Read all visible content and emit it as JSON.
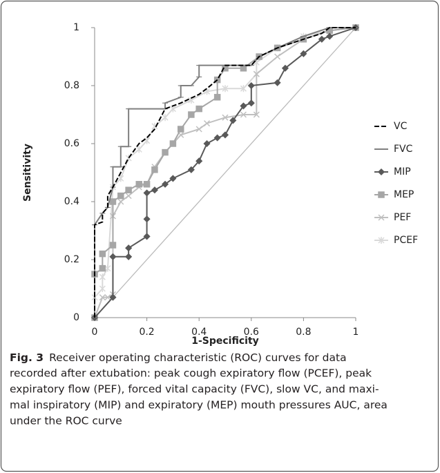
{
  "chart_data": {
    "type": "line",
    "xlabel": "1-Specificity",
    "ylabel": "Sensitivity",
    "xlim": [
      0,
      1
    ],
    "ylim": [
      0,
      1
    ],
    "xticks": [
      0,
      0.2,
      0.4,
      0.6,
      0.8,
      1
    ],
    "yticks": [
      0,
      0.2,
      0.4,
      0.6,
      0.8,
      1
    ],
    "series": [
      {
        "name": "VC",
        "color": "#000000",
        "dash": true,
        "marker": "none",
        "x": [
          0,
          0,
          0.03,
          0.03,
          0.05,
          0.05,
          0.07,
          0.1,
          0.13,
          0.17,
          0.2,
          0.23,
          0.27,
          0.33,
          0.4,
          0.43,
          0.47,
          0.5,
          0.55,
          0.6,
          0.63,
          0.7,
          0.8,
          0.87,
          0.9,
          1
        ],
        "values": [
          0,
          0.32,
          0.33,
          0.36,
          0.38,
          0.42,
          0.45,
          0.5,
          0.55,
          0.6,
          0.62,
          0.65,
          0.72,
          0.74,
          0.77,
          0.79,
          0.82,
          0.87,
          0.87,
          0.87,
          0.9,
          0.93,
          0.96,
          0.98,
          1,
          1
        ]
      },
      {
        "name": "FVC",
        "color": "#7f7f7f",
        "dash": false,
        "marker": "tick",
        "x": [
          0,
          0,
          0.03,
          0.05,
          0.07,
          0.07,
          0.1,
          0.1,
          0.13,
          0.13,
          0.27,
          0.27,
          0.33,
          0.33,
          0.37,
          0.4,
          0.4,
          0.5,
          0.6,
          0.63,
          0.7,
          0.8,
          0.9,
          1
        ],
        "values": [
          0,
          0.32,
          0.36,
          0.38,
          0.45,
          0.52,
          0.52,
          0.59,
          0.59,
          0.72,
          0.72,
          0.74,
          0.76,
          0.8,
          0.8,
          0.83,
          0.87,
          0.87,
          0.87,
          0.9,
          0.93,
          0.97,
          1,
          1
        ]
      },
      {
        "name": "MIP",
        "color": "#595959",
        "dash": false,
        "marker": "diamond",
        "x": [
          0,
          0.07,
          0.07,
          0.13,
          0.13,
          0.2,
          0.2,
          0.2,
          0.23,
          0.27,
          0.3,
          0.37,
          0.4,
          0.43,
          0.47,
          0.5,
          0.53,
          0.57,
          0.6,
          0.6,
          0.7,
          0.73,
          0.8,
          0.87,
          0.9,
          1
        ],
        "values": [
          0,
          0.07,
          0.21,
          0.21,
          0.24,
          0.28,
          0.34,
          0.43,
          0.44,
          0.46,
          0.48,
          0.51,
          0.54,
          0.6,
          0.62,
          0.63,
          0.68,
          0.73,
          0.74,
          0.8,
          0.81,
          0.86,
          0.91,
          0.96,
          0.97,
          1
        ]
      },
      {
        "name": "MEP",
        "color": "#a6a6a6",
        "dash": false,
        "marker": "square",
        "x": [
          0,
          0,
          0.03,
          0.03,
          0.07,
          0.07,
          0.1,
          0.13,
          0.17,
          0.2,
          0.23,
          0.27,
          0.3,
          0.33,
          0.37,
          0.4,
          0.47,
          0.47,
          0.5,
          0.57,
          0.63,
          0.7,
          0.8,
          0.9,
          1
        ],
        "values": [
          0,
          0.15,
          0.17,
          0.22,
          0.25,
          0.4,
          0.42,
          0.44,
          0.46,
          0.46,
          0.51,
          0.57,
          0.6,
          0.65,
          0.7,
          0.72,
          0.76,
          0.82,
          0.86,
          0.86,
          0.9,
          0.93,
          0.96,
          0.99,
          1
        ]
      },
      {
        "name": "PEF",
        "color": "#bfbfbf",
        "dash": false,
        "marker": "x",
        "x": [
          0,
          0.03,
          0.05,
          0.07,
          0.07,
          0.1,
          0.13,
          0.17,
          0.2,
          0.23,
          0.27,
          0.3,
          0.33,
          0.4,
          0.43,
          0.5,
          0.57,
          0.62,
          0.62,
          0.7,
          0.8,
          0.9,
          1
        ],
        "values": [
          0,
          0.07,
          0.07,
          0.08,
          0.35,
          0.4,
          0.42,
          0.45,
          0.46,
          0.52,
          0.57,
          0.6,
          0.63,
          0.65,
          0.67,
          0.69,
          0.7,
          0.7,
          0.84,
          0.9,
          0.96,
          0.99,
          1
        ]
      },
      {
        "name": "PCEF",
        "color": "#d9d9d9",
        "dash": false,
        "marker": "star",
        "x": [
          0,
          0,
          0.03,
          0.03,
          0.05,
          0.07,
          0.1,
          0.13,
          0.17,
          0.2,
          0.23,
          0.27,
          0.3,
          0.37,
          0.43,
          0.5,
          0.57,
          0.62,
          0.62,
          0.7,
          0.8,
          0.9,
          1
        ],
        "values": [
          0,
          0.07,
          0.1,
          0.14,
          0.17,
          0.45,
          0.48,
          0.55,
          0.58,
          0.61,
          0.66,
          0.69,
          0.72,
          0.75,
          0.78,
          0.79,
          0.79,
          0.84,
          0.88,
          0.93,
          0.97,
          0.99,
          1
        ]
      }
    ]
  },
  "caption": {
    "label": "Fig. 3",
    "lines": [
      "Receiver operating characteristic (ROC) curves for data",
      "recorded after extubation: peak cough expiratory flow (PCEF), peak",
      "expiratory flow (PEF), forced vital capacity (FVC), slow VC, and maxi-",
      "mal inspiratory (MIP) and expiratory (MEP) mouth pressures AUC, area",
      "under the ROC curve"
    ]
  }
}
